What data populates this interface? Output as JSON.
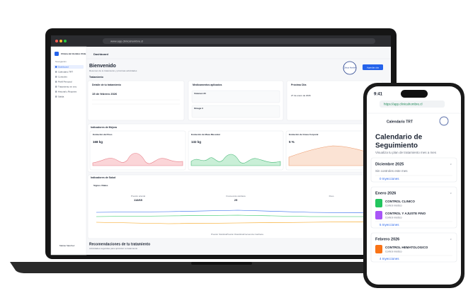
{
  "laptop": {
    "url": "www.app.clinicahombre.cl",
    "sidebar": {
      "brand": "Clínica del Hombre Chile",
      "section": "Navegación",
      "items": [
        "Dashboard",
        "Calendario TRT",
        "Controles",
        "Perfil Personal",
        "Tratamiento en vivo",
        "Historial y Reportes",
        "Salida"
      ],
      "user": "Matías Sánchez"
    },
    "header": {
      "title": "Dashboard",
      "welcome": "Bienvenido",
      "subtitle": "Resumen de tu tratamiento y próximas actividades",
      "button": "Agendar cita",
      "logo": "Clínica Hombre"
    },
    "treatment": {
      "heading": "Tratamiento",
      "cards": [
        {
          "title": "Detalle de tu tratamiento",
          "date": "15 de febrero 2026"
        },
        {
          "title": "Medicamentos aplicados",
          "items": [
            "Volumen 30",
            "Omega 3"
          ]
        },
        {
          "title": "Próxima Cita",
          "date": "27 de enero de 2026"
        }
      ]
    },
    "improvement": {
      "heading": "Indicadores de Mejora",
      "cards": [
        {
          "title": "Evolución del Peso",
          "value": "168 kg"
        },
        {
          "title": "Evolución de Masa Muscular",
          "value": "132 kg"
        },
        {
          "title": "Evolución de Grasa Corporal",
          "value": "5 %"
        }
      ]
    },
    "health": {
      "heading": "Indicadores de Salud",
      "title": "Signos Vitales",
      "stats": [
        {
          "label": "Presión arterial",
          "value": "118/65"
        },
        {
          "label": "Frecuencia cardíaca",
          "value": "25"
        },
        {
          "label": "Peso",
          "value": ""
        }
      ],
      "legend": [
        "Presión Sistólica",
        "Presión Diastólica",
        "Frecuencia Cardíaca"
      ]
    },
    "recommendations": {
      "heading": "Recomendaciones de tu tratamiento",
      "subtitle": "Actividades sugeridas para optimizar tu tratamiento"
    }
  },
  "phone": {
    "time": "9:41",
    "url": "https://app.clinicahombre.cl",
    "header": "Calendario TRT",
    "title_line1": "Calendario de",
    "title_line2": "Seguimiento",
    "subtitle": "Visualiza tu plan de tratamiento mes a mes",
    "months": [
      {
        "name": "Diciembre 2025",
        "note": "Sin controles este mes",
        "injections": "0 Inyecciones",
        "events": []
      },
      {
        "name": "Enero 2026",
        "injections": "5 Inyecciones",
        "events": [
          {
            "title": "CONTROL CLINICO",
            "kind": "Control médico"
          },
          {
            "title": "CONTROL Y AJUSTE FINO",
            "kind": "Control médico"
          }
        ]
      },
      {
        "name": "Febrero 2026",
        "injections": "4 Inyecciones",
        "events": [
          {
            "title": "CONTROL HEMATOLOGICO",
            "kind": "Control médico"
          }
        ]
      }
    ]
  }
}
